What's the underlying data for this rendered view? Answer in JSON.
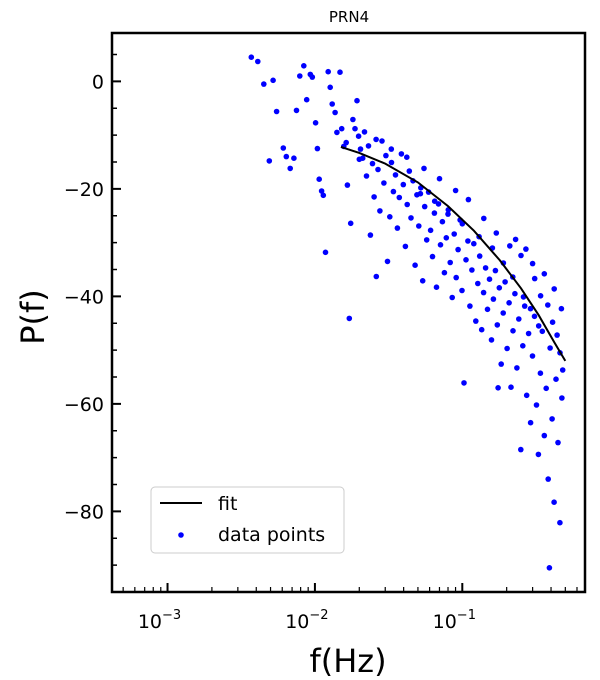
{
  "chart_data": {
    "type": "scatter",
    "title": "PRN4",
    "xlabel": "f(Hz)",
    "ylabel": "P(f)",
    "xscale": "log",
    "xlim": [
      0.00042,
      0.68
    ],
    "ylim": [
      -95,
      9
    ],
    "xticks": [
      0.001,
      0.01,
      0.1
    ],
    "xtick_labels": [
      {
        "base": "10",
        "exp": "−3"
      },
      {
        "base": "10",
        "exp": "−2"
      },
      {
        "base": "10",
        "exp": "−1"
      }
    ],
    "yticks": [
      0,
      -20,
      -40,
      -60,
      -80
    ],
    "ytick_labels": [
      "0",
      "−20",
      "−40",
      "−60",
      "−80"
    ],
    "grid": false,
    "legend": {
      "position": "lower-left",
      "entries": [
        {
          "label": "fit",
          "kind": "line",
          "color": "#000000"
        },
        {
          "label": "data points",
          "kind": "marker",
          "color": "#0000ff"
        }
      ]
    },
    "series": [
      {
        "name": "fit",
        "kind": "line",
        "color": "#000000",
        "points": [
          [
            0.015,
            -12.2
          ],
          [
            0.02,
            -13.3
          ],
          [
            0.03,
            -15.3
          ],
          [
            0.05,
            -18.8
          ],
          [
            0.08,
            -23.2
          ],
          [
            0.12,
            -27.8
          ],
          [
            0.18,
            -33.3
          ],
          [
            0.25,
            -38.5
          ],
          [
            0.33,
            -43.5
          ],
          [
            0.42,
            -48.5
          ],
          [
            0.5,
            -52.0
          ]
        ]
      },
      {
        "name": "data points",
        "kind": "scatter",
        "color": "#0000ff",
        "points": [
          [
            0.0037,
            4.5
          ],
          [
            0.0041,
            3.7
          ],
          [
            0.0045,
            -0.5
          ],
          [
            0.0049,
            -14.8
          ],
          [
            0.0052,
            0.2
          ],
          [
            0.0055,
            -5.6
          ],
          [
            0.0061,
            -12.4
          ],
          [
            0.0064,
            -14.0
          ],
          [
            0.0068,
            -16.2
          ],
          [
            0.0072,
            -14.3
          ],
          [
            0.0075,
            -5.4
          ],
          [
            0.0079,
            1.0
          ],
          [
            0.0084,
            2.9
          ],
          [
            0.0088,
            -3.4
          ],
          [
            0.0093,
            1.3
          ],
          [
            0.0096,
            0.8
          ],
          [
            0.0101,
            -7.7
          ],
          [
            0.0104,
            -12.5
          ],
          [
            0.0107,
            -18.2
          ],
          [
            0.0111,
            -20.4
          ],
          [
            0.0114,
            -21.2
          ],
          [
            0.0118,
            -31.8
          ],
          [
            0.0123,
            1.8
          ],
          [
            0.0127,
            -1.1
          ],
          [
            0.0131,
            -4.2
          ],
          [
            0.0137,
            -5.8
          ],
          [
            0.0141,
            -9.5
          ],
          [
            0.0148,
            1.7
          ],
          [
            0.0152,
            -8.8
          ],
          [
            0.0157,
            -12.1
          ],
          [
            0.0163,
            -11.4
          ],
          [
            0.0166,
            -19.3
          ],
          [
            0.0171,
            -44.1
          ],
          [
            0.0175,
            -26.4
          ],
          [
            0.0181,
            -7.1
          ],
          [
            0.0187,
            -8.8
          ],
          [
            0.0193,
            -3.6
          ],
          [
            0.0198,
            -10.2
          ],
          [
            0.0204,
            -12.6
          ],
          [
            0.0211,
            -14.3
          ],
          [
            0.0217,
            -9.4
          ],
          [
            0.0224,
            -17.6
          ],
          [
            0.0231,
            -12.0
          ],
          [
            0.0238,
            -28.6
          ],
          [
            0.0246,
            -15.3
          ],
          [
            0.0252,
            -21.5
          ],
          [
            0.0261,
            -36.3
          ],
          [
            0.0268,
            -16.4
          ],
          [
            0.0276,
            -24.1
          ],
          [
            0.0285,
            -11.1
          ],
          [
            0.0294,
            -18.9
          ],
          [
            0.0303,
            -13.8
          ],
          [
            0.0311,
            -33.5
          ],
          [
            0.0322,
            -25.2
          ],
          [
            0.0331,
            -15.1
          ],
          [
            0.0341,
            -20.5
          ],
          [
            0.0352,
            -17.4
          ],
          [
            0.0363,
            -27.3
          ],
          [
            0.0374,
            -21.6
          ],
          [
            0.0386,
            -13.5
          ],
          [
            0.0398,
            -19.2
          ],
          [
            0.0411,
            -30.7
          ],
          [
            0.0423,
            -22.9
          ],
          [
            0.0437,
            -16.7
          ],
          [
            0.0449,
            -25.4
          ],
          [
            0.0463,
            -18.5
          ],
          [
            0.0478,
            -34.2
          ],
          [
            0.0492,
            -21.1
          ],
          [
            0.0507,
            -26.9
          ],
          [
            0.0523,
            -19.8
          ],
          [
            0.0539,
            -37.1
          ],
          [
            0.0556,
            -23.3
          ],
          [
            0.0573,
            -29.5
          ],
          [
            0.0591,
            -20.6
          ],
          [
            0.0609,
            -27.7
          ],
          [
            0.0628,
            -32.6
          ],
          [
            0.0647,
            -24.5
          ],
          [
            0.0668,
            -38.3
          ],
          [
            0.0689,
            -22.8
          ],
          [
            0.0711,
            -30.4
          ],
          [
            0.0733,
            -26.1
          ],
          [
            0.0756,
            -35.6
          ],
          [
            0.0779,
            -29.1
          ],
          [
            0.0803,
            -23.9
          ],
          [
            0.0828,
            -33.7
          ],
          [
            0.0854,
            -40.2
          ],
          [
            0.0881,
            -28.4
          ],
          [
            0.0909,
            -36.5
          ],
          [
            0.0937,
            -31.3
          ],
          [
            0.0966,
            -25.8
          ],
          [
            0.0996,
            -38.9
          ],
          [
            0.1027,
            -56.1
          ],
          [
            0.1059,
            -33.2
          ],
          [
            0.1092,
            -29.7
          ],
          [
            0.1126,
            -41.8
          ],
          [
            0.1161,
            -35.1
          ],
          [
            0.1197,
            -30.2
          ],
          [
            0.1234,
            -44.6
          ],
          [
            0.1273,
            -37.6
          ],
          [
            0.1312,
            -32.5
          ],
          [
            0.1353,
            -46.2
          ],
          [
            0.1395,
            -39.3
          ],
          [
            0.1438,
            -34.7
          ],
          [
            0.1483,
            -42.4
          ],
          [
            0.1529,
            -36.8
          ],
          [
            0.1577,
            -48.1
          ],
          [
            0.1626,
            -40.5
          ],
          [
            0.1676,
            -35.2
          ],
          [
            0.1728,
            -45.3
          ],
          [
            0.1782,
            -38.4
          ],
          [
            0.1837,
            -52.6
          ],
          [
            0.1894,
            -43.1
          ],
          [
            0.1953,
            -37.3
          ],
          [
            0.2014,
            -49.7
          ],
          [
            0.2076,
            -41.2
          ],
          [
            0.2141,
            -56.9
          ],
          [
            0.2207,
            -46.4
          ],
          [
            0.2276,
            -39.5
          ],
          [
            0.2347,
            -53.3
          ],
          [
            0.2419,
            -44.2
          ],
          [
            0.2494,
            -68.5
          ],
          [
            0.2572,
            -49.2
          ],
          [
            0.2652,
            -41.8
          ],
          [
            0.2734,
            -58.4
          ],
          [
            0.2819,
            -46.9
          ],
          [
            0.2906,
            -63.5
          ],
          [
            0.2996,
            -51.1
          ],
          [
            0.3089,
            -43.7
          ],
          [
            0.3185,
            -60.2
          ],
          [
            0.3284,
            -69.4
          ],
          [
            0.3386,
            -54.3
          ],
          [
            0.3491,
            -46.5
          ],
          [
            0.3599,
            -65.9
          ],
          [
            0.3711,
            -57.1
          ],
          [
            0.3826,
            -74.0
          ],
          [
            0.3944,
            -49.6
          ],
          [
            0.4067,
            -62.8
          ],
          [
            0.4193,
            -78.3
          ],
          [
            0.4323,
            -55.4
          ],
          [
            0.4457,
            -67.2
          ],
          [
            0.4595,
            -82.1
          ],
          [
            0.4737,
            -58.9
          ],
          [
            0.39,
            -90.5
          ],
          [
            0.175,
            -57.0
          ],
          [
            0.02,
            -14.5
          ],
          [
            0.026,
            -10.8
          ],
          [
            0.033,
            -12.6
          ],
          [
            0.042,
            -14.1
          ],
          [
            0.055,
            -16.2
          ],
          [
            0.07,
            -18.1
          ],
          [
            0.09,
            -20.3
          ],
          [
            0.11,
            -22.0
          ],
          [
            0.14,
            -25.5
          ],
          [
            0.17,
            -28.2
          ],
          [
            0.21,
            -30.6
          ],
          [
            0.25,
            -32.4
          ],
          [
            0.3,
            -33.9
          ],
          [
            0.36,
            -35.8
          ],
          [
            0.42,
            -38.6
          ],
          [
            0.47,
            -42.3
          ],
          [
            0.23,
            -29.4
          ],
          [
            0.27,
            -31.2
          ],
          [
            0.31,
            -36.7
          ],
          [
            0.34,
            -39.9
          ],
          [
            0.38,
            -41.6
          ],
          [
            0.41,
            -44.8
          ],
          [
            0.44,
            -47.2
          ],
          [
            0.46,
            -50.5
          ],
          [
            0.48,
            -53.7
          ],
          [
            0.33,
            -45.5
          ],
          [
            0.29,
            -42.3
          ],
          [
            0.26,
            -40.1
          ],
          [
            0.22,
            -36.4
          ],
          [
            0.19,
            -33.8
          ],
          [
            0.16,
            -31.0
          ],
          [
            0.13,
            -28.9
          ],
          [
            0.1,
            -26.5
          ],
          [
            0.08,
            -24.7
          ],
          [
            0.065,
            -22.3
          ],
          [
            0.052,
            -20.9
          ]
        ]
      }
    ]
  }
}
